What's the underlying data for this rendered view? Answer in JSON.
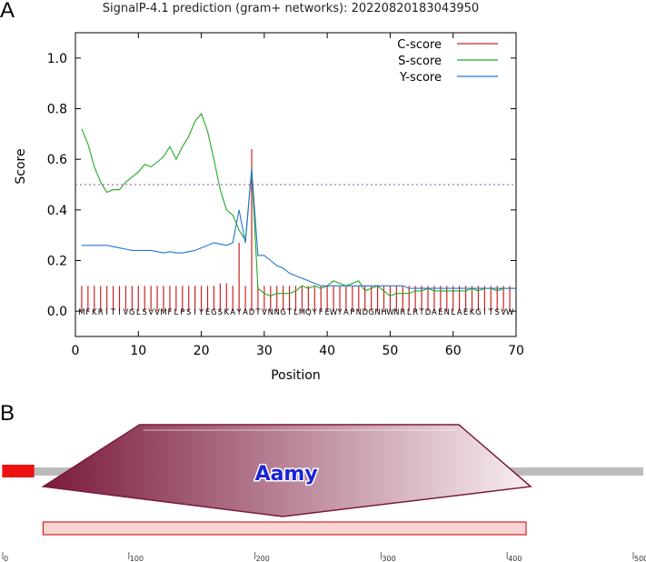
{
  "panels": {
    "a": "A",
    "b": "B"
  },
  "chart_data": {
    "type": "line",
    "title": "SignalP-4.1 prediction (gram+ networks): 20220820183043950",
    "xlabel": "Position",
    "ylabel": "Score",
    "xlim": [
      0,
      70
    ],
    "ylim": [
      -0.1,
      1.1
    ],
    "xticks": [
      0,
      10,
      20,
      30,
      40,
      50,
      60,
      70
    ],
    "yticks": [
      0.0,
      0.2,
      0.4,
      0.6,
      0.8,
      1.0
    ],
    "threshold": 0.5,
    "sequence": "MFKRITIVGLSVVMFLPSIYEGSKAYADTVNNGTLMQYFEWYAPNDGNHWNRLRTDAENLAEKGITSVW",
    "legend_position": "top-right",
    "series": [
      {
        "name": "C-score",
        "color": "#cc2222",
        "kind": "bars",
        "x": [
          1,
          2,
          3,
          4,
          5,
          6,
          7,
          8,
          9,
          10,
          11,
          12,
          13,
          14,
          15,
          16,
          17,
          18,
          19,
          20,
          21,
          22,
          23,
          24,
          25,
          26,
          27,
          28,
          29,
          30,
          31,
          32,
          33,
          34,
          35,
          36,
          37,
          38,
          39,
          40,
          41,
          42,
          43,
          44,
          45,
          46,
          47,
          48,
          49,
          50,
          51,
          52,
          53,
          54,
          55,
          56,
          57,
          58,
          59,
          60,
          61,
          62,
          63,
          64,
          65,
          66,
          67,
          68,
          69
        ],
        "values": [
          0.1,
          0.1,
          0.1,
          0.1,
          0.1,
          0.1,
          0.1,
          0.1,
          0.1,
          0.1,
          0.1,
          0.1,
          0.1,
          0.1,
          0.1,
          0.1,
          0.1,
          0.1,
          0.1,
          0.1,
          0.1,
          0.1,
          0.11,
          0.11,
          0.1,
          0.27,
          0.1,
          0.64,
          0.1,
          0.1,
          0.1,
          0.1,
          0.1,
          0.1,
          0.1,
          0.1,
          0.1,
          0.1,
          0.1,
          0.1,
          0.1,
          0.1,
          0.1,
          0.1,
          0.1,
          0.1,
          0.1,
          0.1,
          0.1,
          0.1,
          0.1,
          0.1,
          0.1,
          0.1,
          0.1,
          0.1,
          0.1,
          0.1,
          0.1,
          0.1,
          0.1,
          0.1,
          0.1,
          0.1,
          0.1,
          0.1,
          0.1,
          0.1,
          0.1
        ]
      },
      {
        "name": "S-score",
        "color": "#22aa22",
        "kind": "line",
        "x": [
          1,
          2,
          3,
          4,
          5,
          6,
          7,
          8,
          9,
          10,
          11,
          12,
          13,
          14,
          15,
          16,
          17,
          18,
          19,
          20,
          21,
          22,
          23,
          24,
          25,
          26,
          27,
          28,
          29,
          30,
          31,
          32,
          33,
          34,
          35,
          36,
          37,
          38,
          39,
          40,
          41,
          42,
          43,
          44,
          45,
          46,
          47,
          48,
          49,
          50,
          51,
          52,
          53,
          54,
          55,
          56,
          57,
          58,
          59,
          60,
          61,
          62,
          63,
          64,
          65,
          66,
          67,
          68,
          69,
          70
        ],
        "values": [
          0.72,
          0.66,
          0.57,
          0.51,
          0.47,
          0.48,
          0.48,
          0.51,
          0.53,
          0.55,
          0.58,
          0.57,
          0.59,
          0.61,
          0.65,
          0.6,
          0.65,
          0.69,
          0.75,
          0.78,
          0.71,
          0.6,
          0.48,
          0.4,
          0.38,
          0.32,
          0.28,
          0.56,
          0.09,
          0.07,
          0.06,
          0.07,
          0.07,
          0.07,
          0.08,
          0.1,
          0.09,
          0.1,
          0.09,
          0.1,
          0.12,
          0.11,
          0.1,
          0.11,
          0.12,
          0.08,
          0.09,
          0.1,
          0.08,
          0.06,
          0.07,
          0.07,
          0.07,
          0.08,
          0.08,
          0.09,
          0.08,
          0.08,
          0.08,
          0.08,
          0.08,
          0.08,
          0.09,
          0.08,
          0.09,
          0.09,
          0.08,
          0.09,
          0.09,
          0.09
        ]
      },
      {
        "name": "Y-score",
        "color": "#2277cc",
        "kind": "line",
        "x": [
          1,
          2,
          3,
          4,
          5,
          6,
          7,
          8,
          9,
          10,
          11,
          12,
          13,
          14,
          15,
          16,
          17,
          18,
          19,
          20,
          21,
          22,
          23,
          24,
          25,
          26,
          27,
          28,
          29,
          30,
          31,
          32,
          33,
          34,
          35,
          36,
          37,
          38,
          39,
          40,
          41,
          42,
          43,
          44,
          45,
          46,
          47,
          48,
          49,
          50,
          51,
          52,
          53,
          54,
          55,
          56,
          57,
          58,
          59,
          60,
          61,
          62,
          63,
          64,
          65,
          66,
          67,
          68,
          69,
          70
        ],
        "values": [
          0.26,
          0.26,
          0.26,
          0.26,
          0.26,
          0.255,
          0.25,
          0.245,
          0.24,
          0.24,
          0.24,
          0.24,
          0.235,
          0.23,
          0.235,
          0.23,
          0.23,
          0.235,
          0.24,
          0.25,
          0.26,
          0.27,
          0.265,
          0.26,
          0.27,
          0.4,
          0.27,
          0.56,
          0.22,
          0.22,
          0.2,
          0.18,
          0.17,
          0.15,
          0.14,
          0.13,
          0.12,
          0.11,
          0.1,
          0.1,
          0.1,
          0.1,
          0.1,
          0.1,
          0.1,
          0.1,
          0.1,
          0.1,
          0.1,
          0.1,
          0.1,
          0.1,
          0.09,
          0.09,
          0.09,
          0.09,
          0.09,
          0.09,
          0.09,
          0.09,
          0.09,
          0.09,
          0.09,
          0.09,
          0.09,
          0.09,
          0.09,
          0.09,
          0.09,
          0.09
        ]
      }
    ]
  },
  "domain_map": {
    "label": "Aamy",
    "axis_range": [
      0,
      500
    ],
    "ticks": [
      "0",
      "100",
      "200",
      "300",
      "400",
      "500"
    ],
    "sequence_length": 500,
    "signal_peptide": [
      1,
      25
    ],
    "domain": [
      30,
      415
    ],
    "region_box": [
      32,
      415
    ],
    "colors": {
      "backbone": "#bbbbbb",
      "signal": "#ee1111",
      "domain_dark": "#7a1a3c",
      "domain_light": "#f8eef2",
      "label": "#1a23d8",
      "region_fill": "#f8d4d4",
      "region_border": "#d42222"
    }
  }
}
